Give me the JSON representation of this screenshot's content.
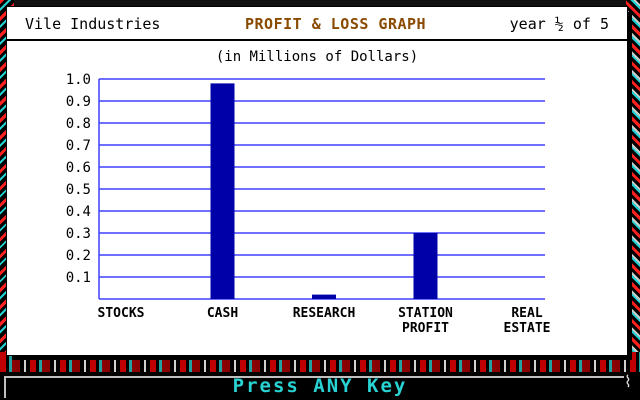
{
  "header": {
    "company": "Vile Industries",
    "title": "PROFIT & LOSS GRAPH",
    "year": "year ½ of 5"
  },
  "colors": {
    "bar": "#0000a8",
    "gridline": "#4040ff",
    "title": "#8a4a00",
    "prompt": "#29d3d3"
  },
  "footer": {
    "prompt": "Press ANY Key",
    "corner_icon": "cursor-icon"
  },
  "chart_data": {
    "type": "bar",
    "title": "(in Millions of Dollars)",
    "categories": [
      "STOCKS",
      "CASH",
      "RESEARCH",
      "STATION PROFIT",
      "REAL ESTATE"
    ],
    "category_lines": [
      [
        "STOCKS"
      ],
      [
        "CASH"
      ],
      [
        "RESEARCH"
      ],
      [
        "STATION",
        "PROFIT"
      ],
      [
        "REAL",
        "ESTATE"
      ]
    ],
    "values": [
      0,
      0.98,
      0.02,
      0.3,
      0
    ],
    "yticks": [
      "0.1",
      "0.2",
      "0.3",
      "0.4",
      "0.5",
      "0.6",
      "0.7",
      "0.8",
      "0.9",
      "1.0"
    ],
    "ylim": [
      0,
      1.0
    ],
    "grid": true
  }
}
